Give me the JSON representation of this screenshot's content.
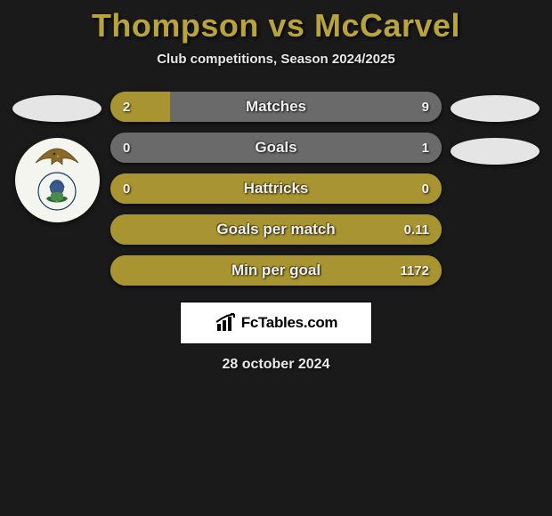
{
  "title": "Thompson vs McCarvel",
  "subtitle": "Club competitions, Season 2024/2025",
  "date": "28 october 2024",
  "brand": "FcTables.com",
  "colors": {
    "title": "#b8a43a",
    "left_bar": "#a89430",
    "right_bar": "#6a6a6a",
    "right_fill_alt": "#a89430",
    "background": "#1a1a1a"
  },
  "stats": [
    {
      "label": "Matches",
      "left_val": "2",
      "right_val": "9",
      "left_pct": 18,
      "right_pct": 82,
      "left_color": "#a89430",
      "right_color": "#6a6a6a"
    },
    {
      "label": "Goals",
      "left_val": "0",
      "right_val": "1",
      "left_pct": 0,
      "right_pct": 100,
      "left_color": "#a89430",
      "right_color": "#6a6a6a"
    },
    {
      "label": "Hattricks",
      "left_val": "0",
      "right_val": "0",
      "left_pct": 100,
      "right_pct": 0,
      "left_color": "#a89430",
      "right_color": "#6a6a6a"
    },
    {
      "label": "Goals per match",
      "left_val": "",
      "right_val": "0.11",
      "left_pct": 0,
      "right_pct": 100,
      "left_color": "#a89430",
      "right_color": "#a89430"
    },
    {
      "label": "Min per goal",
      "left_val": "",
      "right_val": "1172",
      "left_pct": 0,
      "right_pct": 100,
      "left_color": "#a89430",
      "right_color": "#a89430"
    }
  ],
  "side_left": {
    "has_ellipse": true,
    "has_logo": true
  },
  "side_right": {
    "ellipse_count": 2
  }
}
